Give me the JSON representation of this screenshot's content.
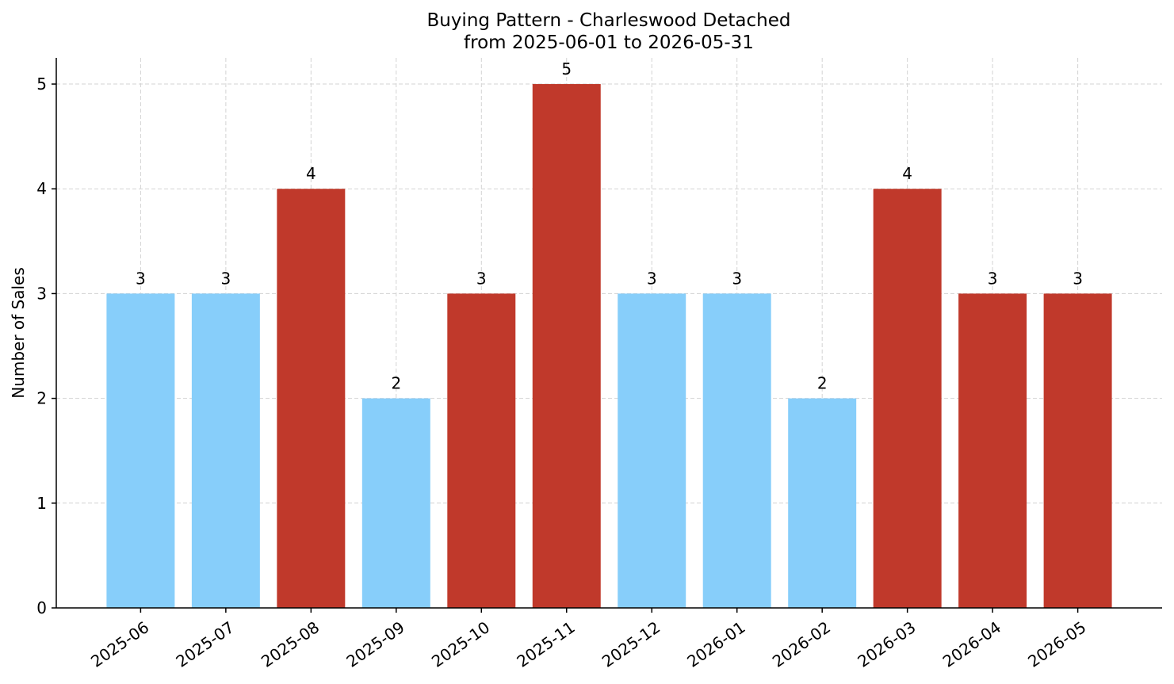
{
  "chart_data": {
    "type": "bar",
    "title": "Buying Pattern - Charleswood Detached",
    "subtitle": "from 2025-06-01 to 2026-05-31",
    "y_label": "Number of Sales",
    "categories": [
      "2025-06",
      "2025-07",
      "2025-08",
      "2025-09",
      "2025-10",
      "2025-11",
      "2025-12",
      "2026-01",
      "2026-02",
      "2026-03",
      "2026-04",
      "2026-05"
    ],
    "values": [
      3,
      3,
      4,
      2,
      3,
      5,
      3,
      3,
      2,
      4,
      3,
      3
    ],
    "colors": [
      "#87cefa",
      "#87cefa",
      "#c0392b",
      "#87cefa",
      "#c0392b",
      "#c0392b",
      "#87cefa",
      "#87cefa",
      "#87cefa",
      "#c0392b",
      "#c0392b",
      "#c0392b"
    ],
    "ylim": [
      0,
      5.25
    ],
    "yticks": [
      0,
      1,
      2,
      3,
      4,
      5
    ],
    "grid": true
  }
}
